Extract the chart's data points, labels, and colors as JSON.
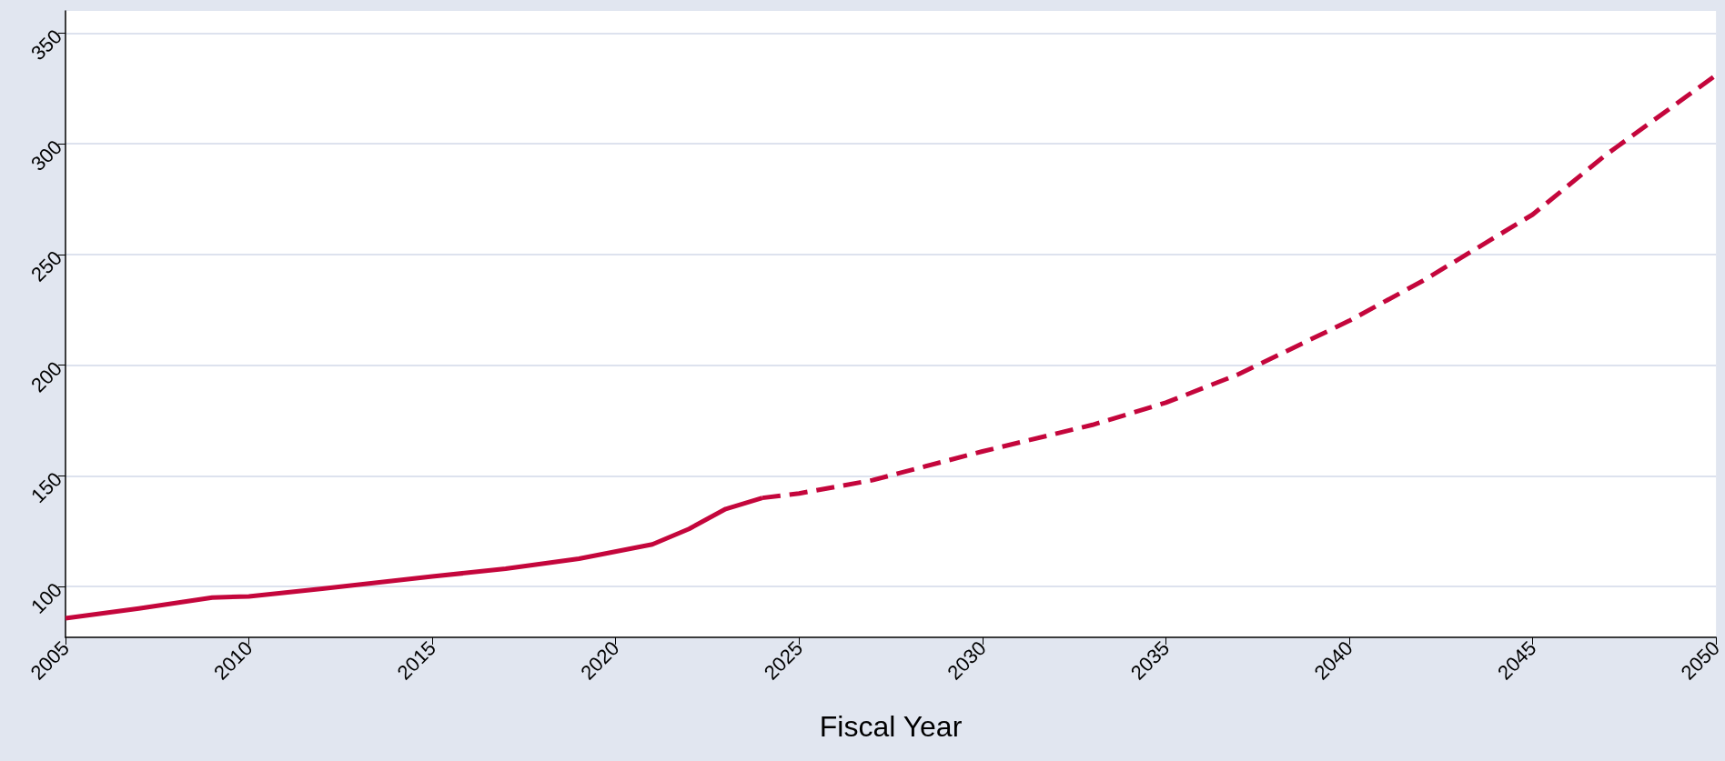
{
  "chart_data": {
    "type": "line",
    "xlabel": "Fiscal Year",
    "xlim": [
      2005,
      2050
    ],
    "xticks": [
      2005,
      2010,
      2015,
      2020,
      2025,
      2030,
      2035,
      2040,
      2045,
      2050
    ],
    "ylim": [
      77,
      360
    ],
    "yticks": [
      100,
      150,
      200,
      250,
      300,
      350
    ],
    "grid": "y",
    "marker": "none",
    "series": [
      {
        "color": "#c4063c",
        "line_style": "solid",
        "x": [
          2005,
          2007,
          2009,
          2010,
          2012,
          2015,
          2017,
          2019,
          2021,
          2022,
          2023,
          2024
        ],
        "values": [
          85.6,
          90,
          95,
          95.5,
          99,
          104.5,
          108,
          112.5,
          119,
          126,
          135,
          140
        ]
      },
      {
        "color": "#c4063c",
        "line_style": "dashed",
        "x": [
          2024,
          2025,
          2027,
          2030,
          2033,
          2035,
          2037,
          2040,
          2042,
          2045,
          2047,
          2050
        ],
        "values": [
          140,
          142,
          148,
          161,
          173,
          183,
          196,
          220,
          238,
          268,
          295,
          331
        ]
      }
    ]
  }
}
